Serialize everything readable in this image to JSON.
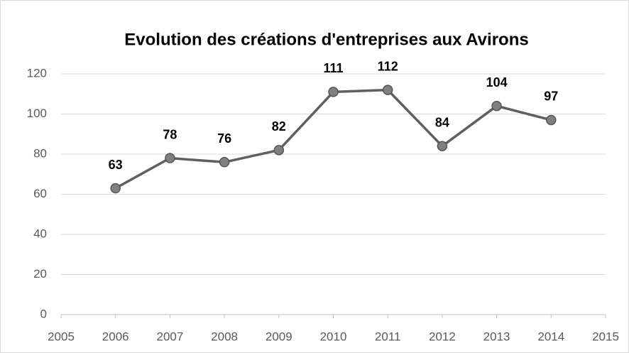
{
  "chart_data": {
    "type": "line",
    "title": "Evolution des créations d'entreprises aux Avirons",
    "x": [
      2006,
      2007,
      2008,
      2009,
      2010,
      2011,
      2012,
      2013,
      2014
    ],
    "values": [
      63,
      78,
      76,
      82,
      111,
      112,
      84,
      104,
      97
    ],
    "color": "#5f5f5f",
    "marker_color": "#808080",
    "xlim": [
      2005,
      2015
    ],
    "xticks": [
      2005,
      2006,
      2007,
      2008,
      2009,
      2010,
      2011,
      2012,
      2013,
      2014,
      2015
    ],
    "ylim": [
      0,
      120
    ],
    "yticks": [
      0,
      20,
      40,
      60,
      80,
      100,
      120
    ],
    "grid": true
  }
}
